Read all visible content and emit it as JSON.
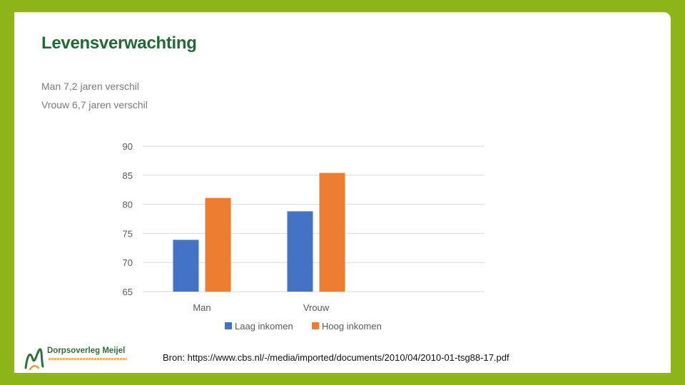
{
  "slide": {
    "title": "Levensverwachting",
    "subtitle_lines": [
      "Man 7,2 jaren verschil",
      "Vrouw 6,7 jaren verschil"
    ],
    "source": "Bron: https://www.cbs.nl/-/media/imported/documents/2010/04/2010-01-tsg88-17.pdf",
    "logo_text": "Dorpsoverleg Meijel"
  },
  "colors": {
    "background": "#8fb619",
    "title": "#1f6b33",
    "series_low": "#4472c4",
    "series_high": "#ed7d31"
  },
  "chart_data": {
    "type": "bar",
    "categories": [
      "Man",
      "Vrouw"
    ],
    "series": [
      {
        "name": "Laag inkomen",
        "values": [
          73.9,
          78.8
        ]
      },
      {
        "name": "Hoog inkomen",
        "values": [
          81.1,
          85.4
        ]
      }
    ],
    "ylim": [
      65,
      90
    ],
    "yticks": [
      65,
      70,
      75,
      80,
      85,
      90
    ],
    "grid": true,
    "legend_position": "bottom"
  }
}
